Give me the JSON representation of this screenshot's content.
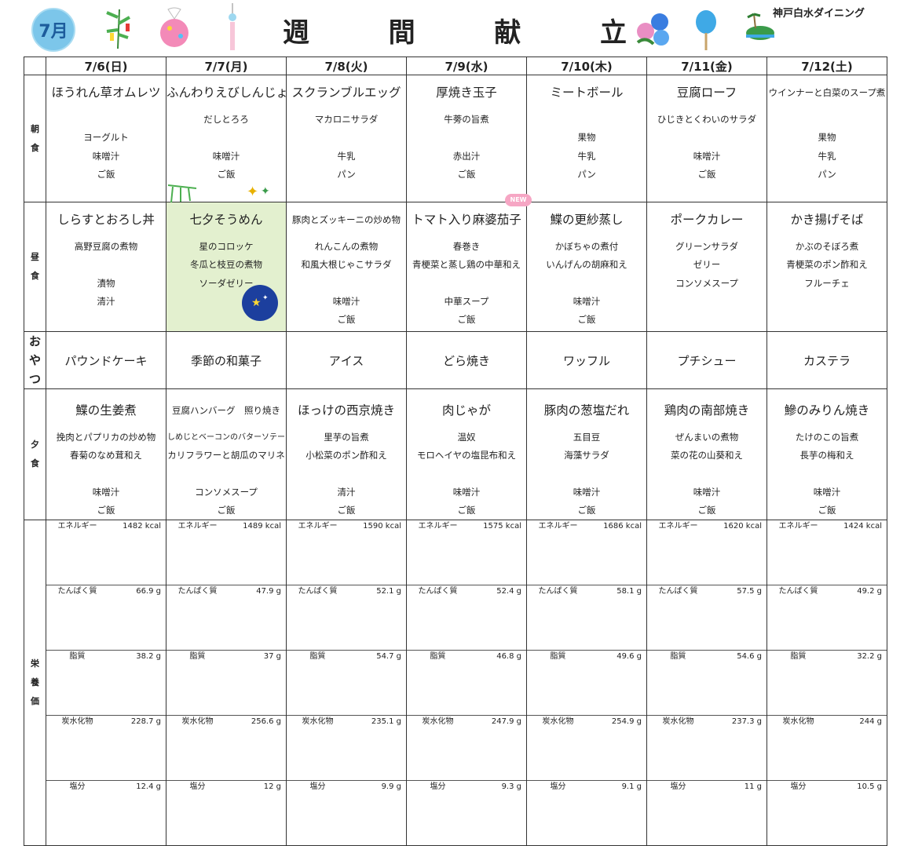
{
  "header": {
    "month_badge": "7月",
    "title_chars": [
      "週",
      "間",
      "献",
      "立"
    ],
    "company": "神戸白水ダイニング"
  },
  "days": [
    "7/6(日)",
    "7/7(月)",
    "7/8(火)",
    "7/9(水)",
    "7/10(木)",
    "7/11(金)",
    "7/12(土)"
  ],
  "row_labels": {
    "breakfast": [
      "朝",
      "食"
    ],
    "lunch": [
      "昼",
      "食"
    ],
    "snack": [
      "おやつ"
    ],
    "dinner": [
      "夕",
      "食"
    ],
    "nutrition": [
      "栄",
      "養",
      "価"
    ]
  },
  "breakfast": [
    {
      "main": "ほうれん草オムレツ",
      "sides": [
        "",
        "ヨーグルト",
        "味噌汁",
        "ご飯"
      ]
    },
    {
      "main": "ふんわりえびしんじょう",
      "sides": [
        "だしとろろ",
        "",
        "味噌汁",
        "ご飯"
      ]
    },
    {
      "main": "スクランブルエッグ",
      "sides": [
        "マカロニサラダ",
        "",
        "牛乳",
        "パン"
      ]
    },
    {
      "main": "厚焼き玉子",
      "sides": [
        "牛蒡の旨煮",
        "",
        "赤出汁",
        "ご飯"
      ]
    },
    {
      "main": "ミートボール",
      "sides": [
        "",
        "果物",
        "牛乳",
        "パン"
      ]
    },
    {
      "main": "豆腐ローフ",
      "sides": [
        "ひじきとくわいのサラダ",
        "",
        "味噌汁",
        "ご飯"
      ]
    },
    {
      "main": "ウインナーと白菜のスープ煮",
      "sides": [
        "",
        "果物",
        "牛乳",
        "パン"
      ]
    }
  ],
  "lunch": [
    {
      "main": "しらすとおろし丼",
      "sides": [
        "高野豆腐の煮物",
        "",
        "漬物",
        "清汁",
        ""
      ]
    },
    {
      "main": "七夕そうめん",
      "sides": [
        "星のコロッケ",
        "冬瓜と枝豆の煮物",
        "ソーダゼリー",
        "",
        ""
      ]
    },
    {
      "main": "豚肉とズッキーニの炒め物",
      "sides": [
        "れんこんの煮物",
        "和風大根じゃこサラダ",
        "",
        "味噌汁",
        "ご飯"
      ]
    },
    {
      "main": "トマト入り麻婆茄子",
      "sides": [
        "春巻き",
        "青梗菜と蒸し鶏の中華和え",
        "",
        "中華スープ",
        "ご飯"
      ]
    },
    {
      "main": "鰈の更紗蒸し",
      "sides": [
        "かぼちゃの煮付",
        "いんげんの胡麻和え",
        "",
        "味噌汁",
        "ご飯"
      ]
    },
    {
      "main": "ポークカレー",
      "sides": [
        "グリーンサラダ",
        "ゼリー",
        "コンソメスープ",
        "",
        ""
      ]
    },
    {
      "main": "かき揚げそば",
      "sides": [
        "かぶのそぼろ煮",
        "青梗菜のポン酢和え",
        "フルーチェ",
        "",
        ""
      ]
    }
  ],
  "new_tag": "NEW",
  "snack": [
    "パウンドケーキ",
    "季節の和菓子",
    "アイス",
    "どら焼き",
    "ワッフル",
    "プチシュー",
    "カステラ"
  ],
  "dinner": [
    {
      "main": "鰈の生姜煮",
      "sides": [
        "挽肉とパプリカの炒め物",
        "春菊のなめ茸和え",
        "",
        "味噌汁",
        "ご飯"
      ]
    },
    {
      "main": "豆腐ハンバーグ　照り焼き",
      "sides": [
        "しめじとベーコンのバターソテー",
        "カリフラワーと胡瓜のマリネ",
        "",
        "コンソメスープ",
        "ご飯"
      ]
    },
    {
      "main": "ほっけの西京焼き",
      "sides": [
        "里芋の旨煮",
        "小松菜のポン酢和え",
        "",
        "清汁",
        "ご飯"
      ]
    },
    {
      "main": "肉じゃが",
      "sides": [
        "温奴",
        "モロヘイヤの塩昆布和え",
        "",
        "味噌汁",
        "ご飯"
      ]
    },
    {
      "main": "豚肉の葱塩だれ",
      "sides": [
        "五目豆",
        "海藻サラダ",
        "",
        "味噌汁",
        "ご飯"
      ]
    },
    {
      "main": "鶏肉の南部焼き",
      "sides": [
        "ぜんまいの煮物",
        "菜の花の山葵和え",
        "",
        "味噌汁",
        "ご飯"
      ]
    },
    {
      "main": "鰺のみりん焼き",
      "sides": [
        "たけのこの旨煮",
        "長芋の梅和え",
        "",
        "味噌汁",
        "ご飯"
      ]
    }
  ],
  "nutrition_labels": [
    "エネルギー",
    "たんぱく質",
    "脂質",
    "炭水化物",
    "塩分"
  ],
  "nutrition": [
    [
      "1482 kcal",
      "66.9 g",
      "38.2 g",
      "228.7 g",
      "12.4 g"
    ],
    [
      "1489 kcal",
      "47.9 g",
      "37 g",
      "256.6 g",
      "12 g"
    ],
    [
      "1590 kcal",
      "52.1 g",
      "54.7 g",
      "235.1 g",
      "9.9 g"
    ],
    [
      "1575 kcal",
      "52.4 g",
      "46.8 g",
      "247.9 g",
      "9.3 g"
    ],
    [
      "1686 kcal",
      "58.1 g",
      "49.6 g",
      "254.9 g",
      "9.1 g"
    ],
    [
      "1620 kcal",
      "57.5 g",
      "54.6 g",
      "237.3 g",
      "11 g"
    ],
    [
      "1424 kcal",
      "49.2 g",
      "32.2 g",
      "244 g",
      "10.5 g"
    ]
  ],
  "colors": {
    "tanabata_highlight": "#e3f0cf",
    "badge": "#7cc6ea",
    "new_tag": "#f6a6c4"
  },
  "decorations": [
    "month-badge-icon",
    "bamboo-tanabata-icon",
    "wind-chime-ball-icon",
    "furin-icon",
    "morning-glory-icon",
    "uchiwa-fan-icon",
    "island-icon",
    "star-night-icon"
  ]
}
